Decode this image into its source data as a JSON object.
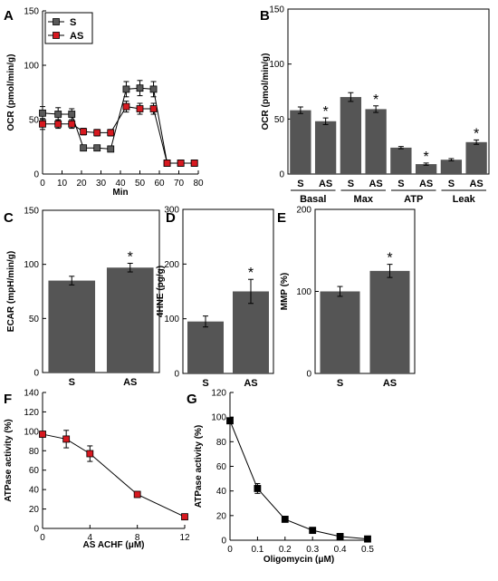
{
  "colors": {
    "gray": "#595959",
    "red": "#d71920",
    "black": "#000000",
    "bar": "#555555"
  },
  "chart_data": [
    {
      "panel": "A",
      "type": "line",
      "xlabel": "Min",
      "ylabel": "OCR (pmol/min/g)",
      "xlim": [
        0,
        80
      ],
      "ylim": [
        0,
        150
      ],
      "xticks": [
        "0",
        "10",
        "20",
        "30",
        "40",
        "50",
        "60",
        "70",
        "80"
      ],
      "yticks": [
        "0",
        "50",
        "100",
        "150"
      ],
      "legend": {
        "position": "top-left"
      },
      "series": [
        {
          "name": "S",
          "color": "gray",
          "x": [
            0,
            8,
            15,
            21,
            28,
            35,
            43,
            50,
            57,
            64,
            71,
            78
          ],
          "y": [
            56,
            55,
            55,
            24,
            24,
            23,
            78,
            79,
            78,
            10,
            10,
            10
          ],
          "err": [
            6,
            6,
            5,
            2,
            2,
            2,
            7,
            7,
            7,
            2,
            2,
            2
          ]
        },
        {
          "name": "AS",
          "color": "red",
          "x": [
            0,
            8,
            15,
            21,
            28,
            35,
            43,
            50,
            57,
            64,
            71,
            78
          ],
          "y": [
            46,
            46,
            46,
            39,
            38,
            38,
            62,
            60,
            60,
            10,
            10,
            10
          ],
          "err": [
            5,
            4,
            4,
            3,
            3,
            3,
            5,
            5,
            5,
            2,
            2,
            2
          ]
        }
      ]
    },
    {
      "panel": "B",
      "type": "bar",
      "ylabel": "OCR (pmol/min/g)",
      "ylim": [
        0,
        150
      ],
      "yticks": [
        "0",
        "50",
        "100",
        "150"
      ],
      "categories": [
        "S",
        "AS",
        "S",
        "AS",
        "S",
        "AS",
        "S",
        "AS"
      ],
      "groups": [
        "Basal",
        "Max",
        "ATP",
        "Leak"
      ],
      "values": [
        58,
        48,
        70,
        59,
        24,
        9,
        13,
        29
      ],
      "err": [
        3,
        3,
        4,
        3,
        1,
        1,
        1,
        2
      ],
      "stars": [
        false,
        true,
        false,
        true,
        false,
        true,
        false,
        true
      ],
      "star": "*"
    },
    {
      "panel": "C",
      "type": "bar",
      "ylabel": "ECAR (mpH/min/g)",
      "ylim": [
        0,
        150
      ],
      "yticks": [
        "0",
        "50",
        "100",
        "150"
      ],
      "categories": [
        "S",
        "AS"
      ],
      "values": [
        85,
        97
      ],
      "err": [
        4,
        4
      ],
      "stars": [
        false,
        true
      ],
      "star": "*"
    },
    {
      "panel": "D",
      "type": "bar",
      "ylabel": "4HNE (pg/g)",
      "ylim": [
        0,
        300
      ],
      "yticks": [
        "0",
        "100",
        "200",
        "300"
      ],
      "categories": [
        "S",
        "AS"
      ],
      "values": [
        95,
        150
      ],
      "err": [
        10,
        22
      ],
      "stars": [
        false,
        true
      ],
      "star": "*"
    },
    {
      "panel": "E",
      "type": "bar",
      "ylabel": "MMP (%)",
      "ylim": [
        0,
        200
      ],
      "yticks": [
        "0",
        "100",
        "200"
      ],
      "categories": [
        "S",
        "AS"
      ],
      "values": [
        100,
        125
      ],
      "err": [
        6,
        8
      ],
      "stars": [
        false,
        true
      ],
      "star": "*"
    },
    {
      "panel": "F",
      "type": "line",
      "xlabel": "AS ACHF (μM)",
      "ylabel": "ATPase activity (%)",
      "xlim": [
        0,
        12
      ],
      "ylim": [
        0,
        140
      ],
      "xticks": [
        "0",
        "4",
        "8",
        "12"
      ],
      "yticks": [
        "0",
        "20",
        "40",
        "60",
        "80",
        "100",
        "120",
        "140"
      ],
      "series": [
        {
          "color": "red",
          "x": [
            0,
            2,
            4,
            8,
            12
          ],
          "y": [
            97,
            92,
            77,
            35,
            12
          ],
          "err": [
            1,
            9,
            8,
            3,
            1
          ]
        }
      ]
    },
    {
      "panel": "G",
      "type": "line",
      "xlabel": "Oligomycin (μM)",
      "ylabel": "ATPase activity (%)",
      "xlim": [
        0,
        0.5
      ],
      "ylim": [
        0,
        120
      ],
      "xticks": [
        "0",
        "0.1",
        "0.2",
        "0.3",
        "0.4",
        "0.5"
      ],
      "yticks": [
        "0",
        "20",
        "40",
        "60",
        "80",
        "100",
        "120"
      ],
      "series": [
        {
          "color": "black",
          "x": [
            0,
            0.1,
            0.2,
            0.3,
            0.4,
            0.5
          ],
          "y": [
            97,
            42,
            17,
            8,
            3,
            1
          ],
          "err": [
            1,
            4,
            1,
            1,
            0.5,
            0.5
          ]
        }
      ]
    }
  ]
}
